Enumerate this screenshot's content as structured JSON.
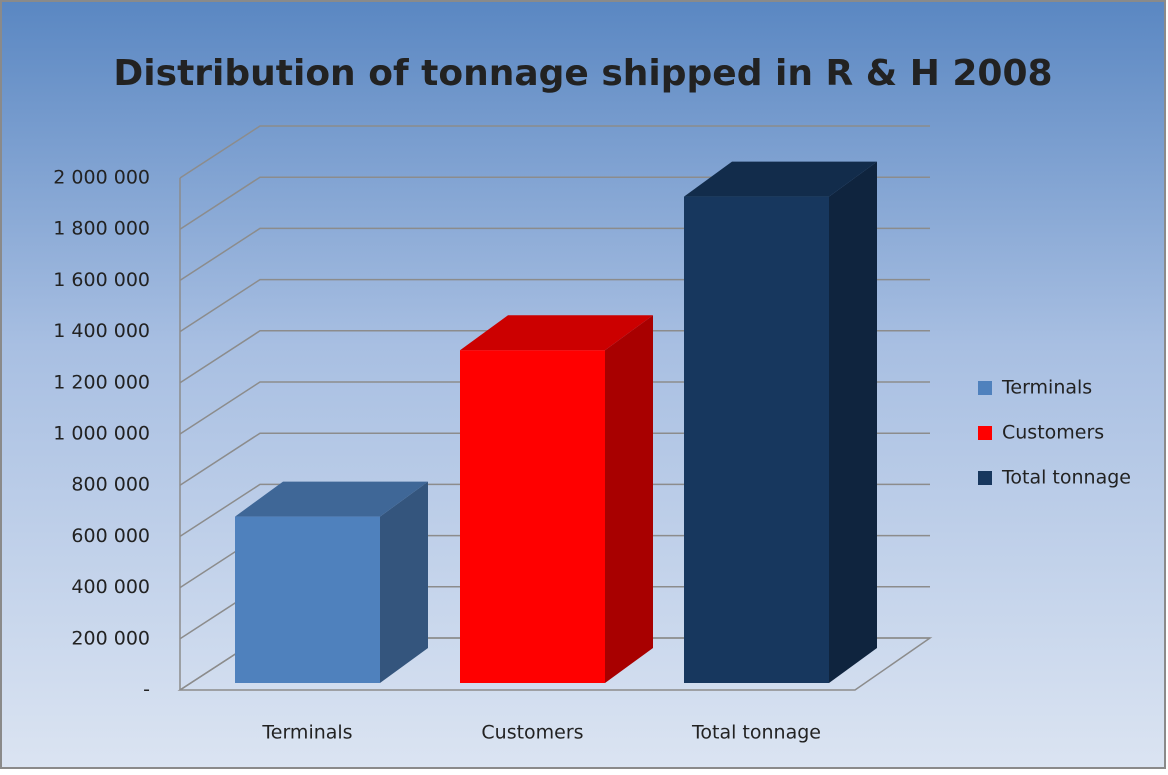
{
  "chart_data": {
    "type": "bar3d",
    "title": "Distribution of tonnage shipped in R & H 2008",
    "categories": [
      "Terminals",
      "Customers",
      "Total tonnage"
    ],
    "values": [
      650000,
      1300000,
      1900000
    ],
    "colors": [
      "#4f81bd",
      "#ff0000",
      "#17375e"
    ],
    "ylim": [
      0,
      2000000
    ],
    "yticks": [
      {
        "value": 0,
        "label": "-"
      },
      {
        "value": 200000,
        "label": "200 000"
      },
      {
        "value": 400000,
        "label": "400 000"
      },
      {
        "value": 600000,
        "label": "600 000"
      },
      {
        "value": 800000,
        "label": "800 000"
      },
      {
        "value": 1000000,
        "label": "1 000 000"
      },
      {
        "value": 1200000,
        "label": "1 200 000"
      },
      {
        "value": 1400000,
        "label": "1 400 000"
      },
      {
        "value": 1600000,
        "label": "1 600 000"
      },
      {
        "value": 1800000,
        "label": "1 800 000"
      },
      {
        "value": 2000000,
        "label": "2 000 000"
      }
    ],
    "grid": true,
    "legend": "right"
  }
}
